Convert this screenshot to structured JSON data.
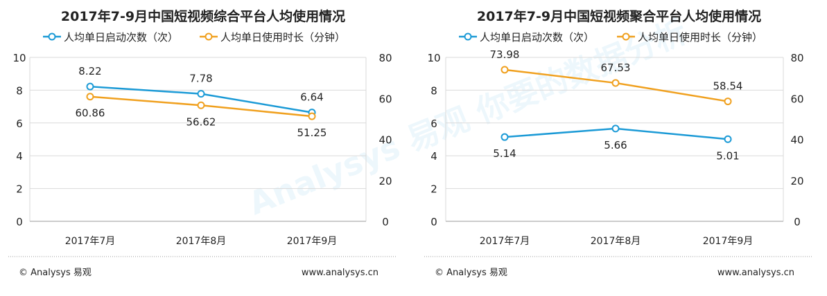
{
  "watermark": "Analysys 易观 你要的数据分析",
  "colors": {
    "series1": "#1b9ad6",
    "series2": "#f0a01e",
    "grid": "#d9d9d9",
    "text": "#222222"
  },
  "footer": {
    "left": "© Analysys 易观",
    "right": "www.analysys.cn"
  },
  "chart_data": [
    {
      "type": "line",
      "title": "2017年7-9月中国短视频综合平台人均使用情况",
      "categories": [
        "2017年7月",
        "2017年8月",
        "2017年9月"
      ],
      "y_left": {
        "range": [
          0,
          10
        ],
        "ticks": [
          "0",
          "2",
          "4",
          "6",
          "8",
          "10"
        ]
      },
      "y_right": {
        "range": [
          0,
          80
        ],
        "ticks": [
          "0",
          "20",
          "40",
          "60",
          "80"
        ]
      },
      "grid": "horizontal",
      "legend": "top",
      "series": [
        {
          "name": "人均单日启动次数（次）",
          "axis": "left",
          "values": [
            8.22,
            7.78,
            6.64
          ],
          "labels": [
            "8.22",
            "7.78",
            "6.64"
          ]
        },
        {
          "name": "人均单日使用时长（分钟）",
          "axis": "right",
          "values": [
            60.86,
            56.62,
            51.25
          ],
          "labels": [
            "60.86",
            "56.62",
            "51.25"
          ]
        }
      ]
    },
    {
      "type": "line",
      "title": "2017年7-9月中国短视频聚合平台人均使用情况",
      "categories": [
        "2017年7月",
        "2017年8月",
        "2017年9月"
      ],
      "y_left": {
        "range": [
          0,
          10
        ],
        "ticks": [
          "0",
          "2",
          "4",
          "6",
          "8",
          "10"
        ]
      },
      "y_right": {
        "range": [
          0,
          80
        ],
        "ticks": [
          "0",
          "20",
          "40",
          "60",
          "80"
        ]
      },
      "grid": "horizontal",
      "legend": "top",
      "series": [
        {
          "name": "人均单日启动次数（次）",
          "axis": "left",
          "values": [
            5.14,
            5.66,
            5.01
          ],
          "labels": [
            "5.14",
            "5.66",
            "5.01"
          ]
        },
        {
          "name": "人均单日使用时长（分钟）",
          "axis": "right",
          "values": [
            73.98,
            67.53,
            58.54
          ],
          "labels": [
            "73.98",
            "67.53",
            "58.54"
          ]
        }
      ]
    }
  ]
}
